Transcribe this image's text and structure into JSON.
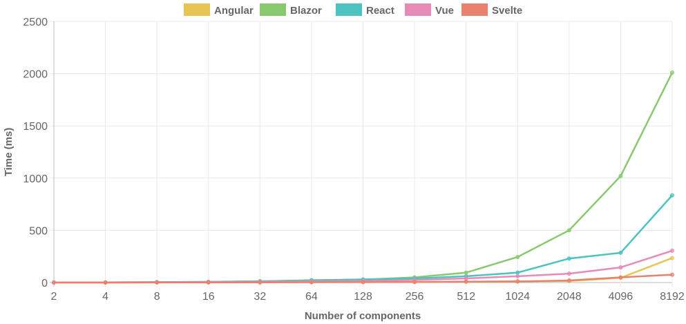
{
  "chart_data": {
    "type": "line",
    "title": "",
    "xlabel": "Number of components",
    "ylabel": "Time (ms)",
    "categories": [
      "2",
      "4",
      "8",
      "16",
      "32",
      "64",
      "128",
      "256",
      "512",
      "1024",
      "2048",
      "4096",
      "8192"
    ],
    "ylim": [
      0,
      2500
    ],
    "yticks": [
      0,
      500,
      1000,
      1500,
      2000,
      2500
    ],
    "grid": true,
    "legend": "top-center",
    "series": [
      {
        "name": "Angular",
        "color": "#e8c454",
        "values": [
          0,
          0,
          1,
          2,
          3,
          4,
          5,
          7,
          8,
          12,
          15,
          45,
          235
        ]
      },
      {
        "name": "Blazor",
        "color": "#88c970",
        "values": [
          1,
          2,
          4,
          7,
          12,
          20,
          28,
          50,
          95,
          245,
          500,
          1020,
          2010
        ]
      },
      {
        "name": "React",
        "color": "#4cc3bf",
        "values": [
          1,
          2,
          4,
          7,
          12,
          22,
          30,
          40,
          60,
          95,
          230,
          285,
          835
        ]
      },
      {
        "name": "Vue",
        "color": "#e58bb6",
        "values": [
          1,
          1,
          2,
          4,
          6,
          10,
          15,
          25,
          40,
          60,
          85,
          145,
          305
        ]
      },
      {
        "name": "Svelte",
        "color": "#e8826f",
        "values": [
          0,
          0,
          1,
          1,
          2,
          3,
          4,
          5,
          8,
          10,
          20,
          50,
          75
        ]
      }
    ]
  }
}
